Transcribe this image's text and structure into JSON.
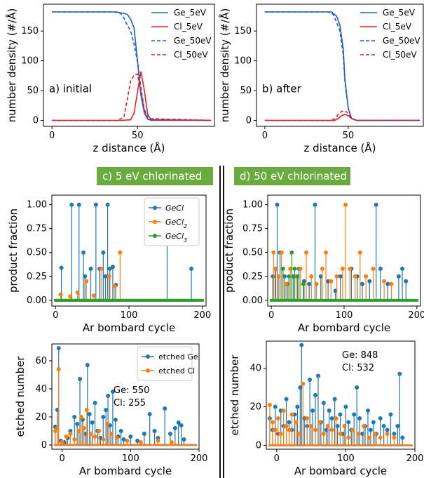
{
  "colors": {
    "blue": "#1f5fbf",
    "red": "#e02020",
    "stem_blue": "#1f77b4",
    "stem_orange": "#ff7f0e",
    "stem_green": "#2ca02c",
    "banner": "#6aaa3e"
  },
  "banners": {
    "left": "c) 5 eV chlorinated",
    "right": "d) 50 eV chlorinated"
  },
  "chart_data": [
    {
      "id": "a",
      "type": "line",
      "xlabel": "z distance (Å)",
      "ylabel": "number density (#/Å)",
      "xlim": [
        -5,
        95
      ],
      "ylim": [
        -10,
        195
      ],
      "xticks": [
        0,
        50
      ],
      "yticks": [
        0,
        50,
        100,
        150
      ],
      "annotation": "a) initial",
      "legend_position": "top-right",
      "series": [
        {
          "name": "Ge_5eV",
          "color": "#1f5fbf",
          "dash": false,
          "x": [
            0,
            38,
            44,
            46,
            48,
            50,
            52,
            54,
            56,
            58,
            93
          ],
          "y": [
            182,
            182,
            178,
            170,
            155,
            100,
            42,
            12,
            2,
            0,
            0
          ]
        },
        {
          "name": "Cl_5eV",
          "color": "#e02020",
          "dash": false,
          "x": [
            0,
            40,
            46,
            48,
            50,
            52,
            54,
            56,
            58,
            93
          ],
          "y": [
            0,
            0,
            1,
            12,
            48,
            82,
            50,
            10,
            1,
            0
          ]
        },
        {
          "name": "Ge_50eV",
          "color": "#1f5fbf",
          "dash": true,
          "x": [
            0,
            36,
            40,
            42,
            44,
            46,
            48,
            50,
            52,
            54,
            57,
            93
          ],
          "y": [
            182,
            182,
            180,
            172,
            160,
            150,
            128,
            98,
            55,
            18,
            2,
            0
          ]
        },
        {
          "name": "Cl_50eV",
          "color": "#e02020",
          "dash": true,
          "x": [
            0,
            38,
            42,
            44,
            46,
            48,
            50,
            52,
            54,
            56,
            93
          ],
          "y": [
            0,
            0,
            5,
            35,
            66,
            76,
            78,
            48,
            18,
            3,
            0
          ]
        }
      ]
    },
    {
      "id": "b",
      "type": "line",
      "xlabel": "z distance (Å)",
      "ylabel": "number density (#/Å)",
      "xlim": [
        -5,
        95
      ],
      "ylim": [
        -10,
        195
      ],
      "xticks": [
        0,
        50
      ],
      "yticks": [
        0,
        50,
        100,
        150
      ],
      "annotation": "b) after",
      "legend_position": "top-right",
      "series": [
        {
          "name": "Ge_5eV",
          "color": "#1f5fbf",
          "dash": false,
          "x": [
            0,
            40,
            43,
            45,
            47,
            48,
            50,
            52,
            55,
            93
          ],
          "y": [
            182,
            182,
            175,
            160,
            120,
            70,
            20,
            3,
            0,
            0
          ]
        },
        {
          "name": "Cl_5eV",
          "color": "#e02020",
          "dash": false,
          "x": [
            0,
            42,
            44,
            46,
            48,
            50,
            52,
            55,
            93
          ],
          "y": [
            0,
            0,
            3,
            8,
            10,
            8,
            3,
            0,
            0
          ]
        },
        {
          "name": "Ge_50eV",
          "color": "#1f5fbf",
          "dash": true,
          "x": [
            0,
            38,
            41,
            43,
            45,
            47,
            48,
            50,
            52,
            55,
            93
          ],
          "y": [
            182,
            182,
            178,
            165,
            150,
            110,
            65,
            20,
            3,
            0,
            0
          ]
        },
        {
          "name": "Cl_50eV",
          "color": "#e02020",
          "dash": true,
          "x": [
            0,
            40,
            42,
            44,
            46,
            48,
            50,
            52,
            55,
            93
          ],
          "y": [
            0,
            0,
            3,
            10,
            15,
            16,
            12,
            4,
            0,
            0
          ]
        }
      ]
    },
    {
      "id": "c",
      "type": "stem",
      "xlabel": "Ar bombard cycle",
      "ylabel": "product fraction",
      "xlim": [
        -5,
        205
      ],
      "ylim": [
        -0.06,
        1.1
      ],
      "xticks": [
        0,
        100,
        200
      ],
      "yticks": [
        0.0,
        0.25,
        0.5,
        0.75,
        1.0
      ],
      "legend_position": "top-right",
      "series": [
        {
          "name": "GeCl",
          "sub": "",
          "color": "#1f77b4",
          "x": [
            8,
            22,
            32,
            38,
            40,
            48,
            55,
            60,
            65,
            68,
            71,
            74,
            78,
            82,
            152,
            185
          ],
          "y": [
            0.34,
            1.0,
            1.0,
            0.5,
            0.25,
            0.33,
            1.0,
            0.33,
            0.5,
            0.25,
            1.0,
            0.33,
            0.35,
            0.16,
            0.72,
            0.33
          ]
        },
        {
          "name": "GeCl",
          "sub": "2",
          "color": "#ff7f0e",
          "x": [
            7,
            20,
            30,
            42,
            52,
            62,
            73,
            80,
            88
          ],
          "y": [
            0.06,
            0.04,
            0.08,
            0.2,
            0.05,
            0.33,
            0.25,
            0.15,
            0.5
          ]
        },
        {
          "name": "GeCl",
          "sub": "3",
          "color": "#2ca02c",
          "x": [
            0,
            195
          ],
          "y": [
            0,
            0
          ]
        }
      ]
    },
    {
      "id": "d",
      "type": "stem",
      "xlabel": "Ar bombard cycle",
      "ylabel": "product fraction",
      "xlim": [
        -5,
        205
      ],
      "ylim": [
        -0.06,
        1.1
      ],
      "xticks": [
        0,
        100,
        200
      ],
      "yticks": [
        0.0,
        0.25,
        0.5,
        0.75,
        1.0
      ],
      "series": [
        {
          "name": "GeCl",
          "sub": "",
          "color": "#1f77b4",
          "x": [
            2,
            6,
            8,
            12,
            18,
            22,
            30,
            38,
            45,
            52,
            60,
            68,
            78,
            88,
            95,
            110,
            118,
            125,
            135,
            144,
            150,
            160,
            175,
            180,
            185
          ],
          "y": [
            0.25,
            0.33,
            1.0,
            0.5,
            0.25,
            0.17,
            0.25,
            0.33,
            0.2,
            0.17,
            1.0,
            0.25,
            0.2,
            0.1,
            0.25,
            0.33,
            0.25,
            0.17,
            0.2,
            1.0,
            0.33,
            0.17,
            0.25,
            0.33,
            0.2
          ]
        },
        {
          "name": "GeCl",
          "sub": "2",
          "color": "#ff7f0e",
          "x": [
            3,
            5,
            10,
            14,
            20,
            26,
            34,
            40,
            48,
            55,
            62,
            70,
            75,
            82,
            90,
            98,
            102,
            108,
            115,
            122,
            130,
            140,
            155,
            165
          ],
          "y": [
            0.5,
            0.33,
            0.25,
            0.5,
            0.17,
            0.33,
            0.25,
            0.33,
            0.5,
            0.25,
            0.17,
            0.33,
            0.5,
            0.2,
            0.25,
            0.33,
            1.0,
            0.33,
            0.25,
            0.5,
            0.25,
            0.33,
            0.2,
            0.17
          ]
        },
        {
          "name": "GeCl",
          "sub": "3",
          "color": "#2ca02c",
          "x": [
            16,
            24,
            28,
            32,
            36,
            44
          ],
          "y": [
            0.33,
            0.25,
            0.5,
            0.33,
            0.25,
            0.17
          ]
        }
      ]
    },
    {
      "id": "e",
      "type": "stem",
      "xlabel": "Ar bombard cycle",
      "ylabel": "etched number",
      "xlim": [
        -15,
        200
      ],
      "ylim": [
        -3,
        72
      ],
      "xticks": [
        0,
        100,
        200
      ],
      "yticks": [
        0,
        20,
        40,
        60
      ],
      "annotation_lines": [
        "Ge: 550",
        "Cl: 255"
      ],
      "legend_position": "top-right",
      "series": [
        {
          "name": "etched Ge",
          "sub": "",
          "color": "#1f77b4",
          "x": [
            -10,
            -7,
            -5,
            -2,
            3,
            8,
            12,
            18,
            22,
            26,
            30,
            34,
            37,
            40,
            44,
            48,
            52,
            56,
            60,
            64,
            67,
            70,
            74,
            78,
            82,
            86,
            90,
            100,
            110,
            120,
            128,
            135,
            140,
            150,
            158,
            165,
            170,
            174,
            178
          ],
          "y": [
            13,
            25,
            69,
            3,
            2,
            5,
            10,
            20,
            15,
            47,
            18,
            8,
            57,
            22,
            16,
            30,
            10,
            5,
            20,
            25,
            35,
            14,
            38,
            18,
            6,
            10,
            4,
            6,
            3,
            8,
            22,
            10,
            5,
            26,
            8,
            12,
            16,
            14,
            4
          ]
        },
        {
          "name": "etched Cl",
          "sub": "",
          "color": "#ff7f0e",
          "x": [
            -10,
            -7,
            -5,
            0,
            6,
            12,
            18,
            24,
            28,
            32,
            36,
            42,
            48,
            54,
            60,
            66,
            72,
            80,
            95,
            115,
            140,
            160
          ],
          "y": [
            10,
            12,
            54,
            2,
            6,
            8,
            4,
            10,
            20,
            12,
            25,
            8,
            6,
            10,
            4,
            15,
            8,
            5,
            3,
            2,
            3,
            2
          ]
        }
      ]
    },
    {
      "id": "f",
      "type": "stem",
      "xlabel": "Ar bombard cycle",
      "ylabel": "etched number",
      "xlim": [
        -15,
        200
      ],
      "ylim": [
        -2,
        54
      ],
      "xticks": [
        0,
        100,
        200
      ],
      "yticks": [
        0,
        20,
        40
      ],
      "annotation_lines": [
        "Ge: 848",
        "Cl: 532"
      ],
      "series": [
        {
          "name": "etched Ge",
          "sub": "",
          "color": "#1f77b4",
          "x": [
            -10,
            -6,
            -2,
            2,
            6,
            10,
            14,
            18,
            22,
            26,
            30,
            34,
            36,
            40,
            44,
            48,
            52,
            56,
            60,
            64,
            68,
            72,
            76,
            80,
            84,
            88,
            92,
            96,
            100,
            104,
            108,
            112,
            116,
            120,
            124,
            128,
            132,
            136,
            140,
            144,
            150,
            155,
            160,
            165,
            170,
            175,
            178,
            182
          ],
          "y": [
            14,
            8,
            20,
            6,
            18,
            10,
            24,
            12,
            8,
            16,
            20,
            30,
            52,
            14,
            10,
            34,
            18,
            26,
            36,
            12,
            22,
            8,
            18,
            14,
            24,
            10,
            16,
            6,
            20,
            12,
            8,
            16,
            30,
            14,
            6,
            10,
            18,
            8,
            12,
            6,
            14,
            10,
            8,
            16,
            6,
            10,
            37,
            4
          ]
        },
        {
          "name": "etched Cl",
          "sub": "",
          "color": "#ff7f0e",
          "x": [
            -10,
            -6,
            -2,
            2,
            6,
            10,
            14,
            18,
            22,
            28,
            32,
            38,
            44,
            50,
            56,
            62,
            68,
            74,
            80,
            86,
            92,
            98,
            104,
            110,
            118,
            126,
            134,
            142,
            150,
            160,
            170
          ],
          "y": [
            21,
            12,
            8,
            14,
            6,
            18,
            10,
            8,
            16,
            12,
            6,
            32,
            14,
            10,
            8,
            12,
            6,
            10,
            8,
            14,
            6,
            10,
            4,
            8,
            6,
            10,
            4,
            6,
            4,
            6,
            4
          ]
        }
      ]
    }
  ]
}
